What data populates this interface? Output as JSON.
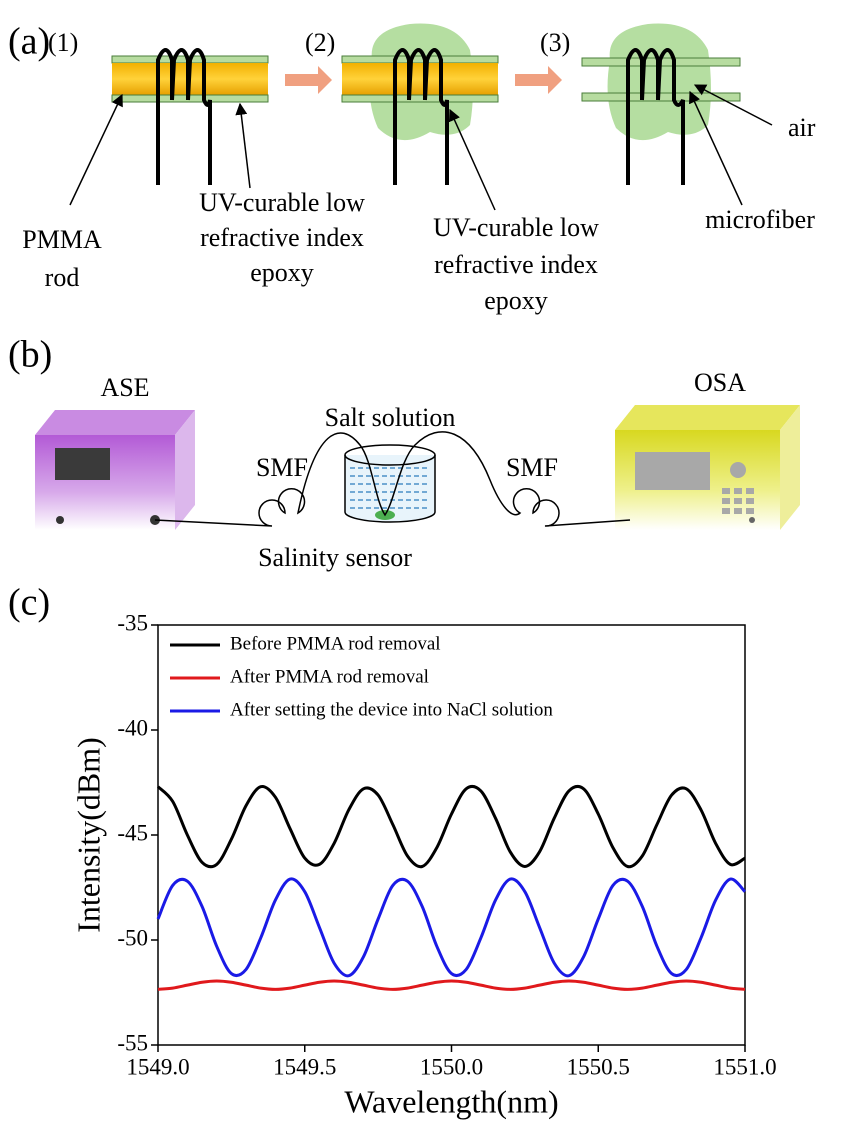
{
  "panel_a": {
    "label": "(a)",
    "steps": [
      "(1)",
      "(2)",
      "(3)"
    ],
    "pmma_rod": [
      "PMMA",
      "rod"
    ],
    "epoxy_left": [
      "UV-curable low",
      "refractive index",
      "epoxy"
    ],
    "epoxy_right": [
      "UV-curable low",
      "refractive index",
      "epoxy"
    ],
    "air": "air",
    "microfiber": "microfiber"
  },
  "panel_b": {
    "label": "(b)",
    "ase": "ASE",
    "salt_solution": "Salt solution",
    "smf_left": "SMF",
    "smf_right": "SMF",
    "osa": "OSA",
    "salinity_sensor": "Salinity sensor"
  },
  "panel_c": {
    "label": "(c)"
  },
  "chart_data": {
    "type": "line",
    "x_label": "Wavelength(nm)",
    "y_label": "Intensity(dBm)",
    "xlim": [
      1549,
      1551
    ],
    "ylim": [
      -55,
      -35
    ],
    "xticks": [
      {
        "value": 1549,
        "label": "1549.0"
      },
      1549.5,
      {
        "value": 1550,
        "label": "1550.0"
      },
      1550.5,
      {
        "value": 1551,
        "label": "1551.0"
      }
    ],
    "yticks": [
      -35,
      -40,
      -45,
      -50,
      -55
    ],
    "grid": false,
    "legend": "upper left",
    "x": [
      1549,
      1549.05,
      1549.1,
      1549.15,
      1549.2,
      1549.25,
      1549.3,
      1549.35,
      1549.4,
      1549.45,
      1549.5,
      1549.55,
      1549.6,
      1549.65,
      1549.7,
      1549.75,
      1549.8,
      1549.85,
      1549.9,
      1549.95,
      1550,
      1550.05,
      1550.1,
      1550.15,
      1550.2,
      1550.25,
      1550.3,
      1550.35,
      1550.4,
      1550.45,
      1550.5,
      1550.55,
      1550.6,
      1550.65,
      1550.7,
      1550.75,
      1550.8,
      1550.85,
      1550.9,
      1550.95,
      1551
    ],
    "series": [
      {
        "name": "Before PMMA rod removal",
        "color": "#000000",
        "values": [
          -42.7,
          -43.4,
          -45.0,
          -46.3,
          -46.4,
          -45.2,
          -43.6,
          -42.7,
          -43.2,
          -44.7,
          -46.1,
          -46.4,
          -45.4,
          -43.8,
          -42.8,
          -43.1,
          -44.5,
          -46.0,
          -46.5,
          -45.6,
          -44.0,
          -42.8,
          -42.9,
          -44.2,
          -45.8,
          -46.5,
          -45.8,
          -44.2,
          -42.9,
          -42.8,
          -44.0,
          -45.6,
          -46.5,
          -46.0,
          -44.5,
          -43.1,
          -42.8,
          -43.8,
          -45.4,
          -46.4,
          -46.1
        ]
      },
      {
        "name": "After PMMA rod removal",
        "color": "#e0191c",
        "values": [
          -52.35,
          -52.29,
          -52.15,
          -52.01,
          -51.95,
          -52.01,
          -52.15,
          -52.29,
          -52.35,
          -52.29,
          -52.15,
          -52.01,
          -51.95,
          -52.01,
          -52.15,
          -52.29,
          -52.35,
          -52.29,
          -52.15,
          -52.01,
          -51.95,
          -52.01,
          -52.15,
          -52.29,
          -52.35,
          -52.29,
          -52.15,
          -52.01,
          -51.95,
          -52.01,
          -52.15,
          -52.29,
          -52.35,
          -52.29,
          -52.15,
          -52.01,
          -51.95,
          -52.01,
          -52.15,
          -52.29,
          -52.35
        ]
      },
      {
        "name": "After setting the device into NaCl solution",
        "color": "#1a1ae6",
        "values": [
          -49.0,
          -47.4,
          -47.2,
          -48.4,
          -50.3,
          -51.6,
          -51.4,
          -49.9,
          -48.1,
          -47.1,
          -47.7,
          -49.4,
          -51.1,
          -51.7,
          -50.8,
          -49.0,
          -47.4,
          -47.2,
          -48.4,
          -50.3,
          -51.6,
          -51.4,
          -49.9,
          -48.1,
          -47.1,
          -47.7,
          -49.4,
          -51.1,
          -51.7,
          -50.8,
          -49.0,
          -47.4,
          -47.2,
          -48.4,
          -50.3,
          -51.6,
          -51.4,
          -49.9,
          -48.1,
          -47.1,
          -47.7
        ]
      }
    ]
  }
}
